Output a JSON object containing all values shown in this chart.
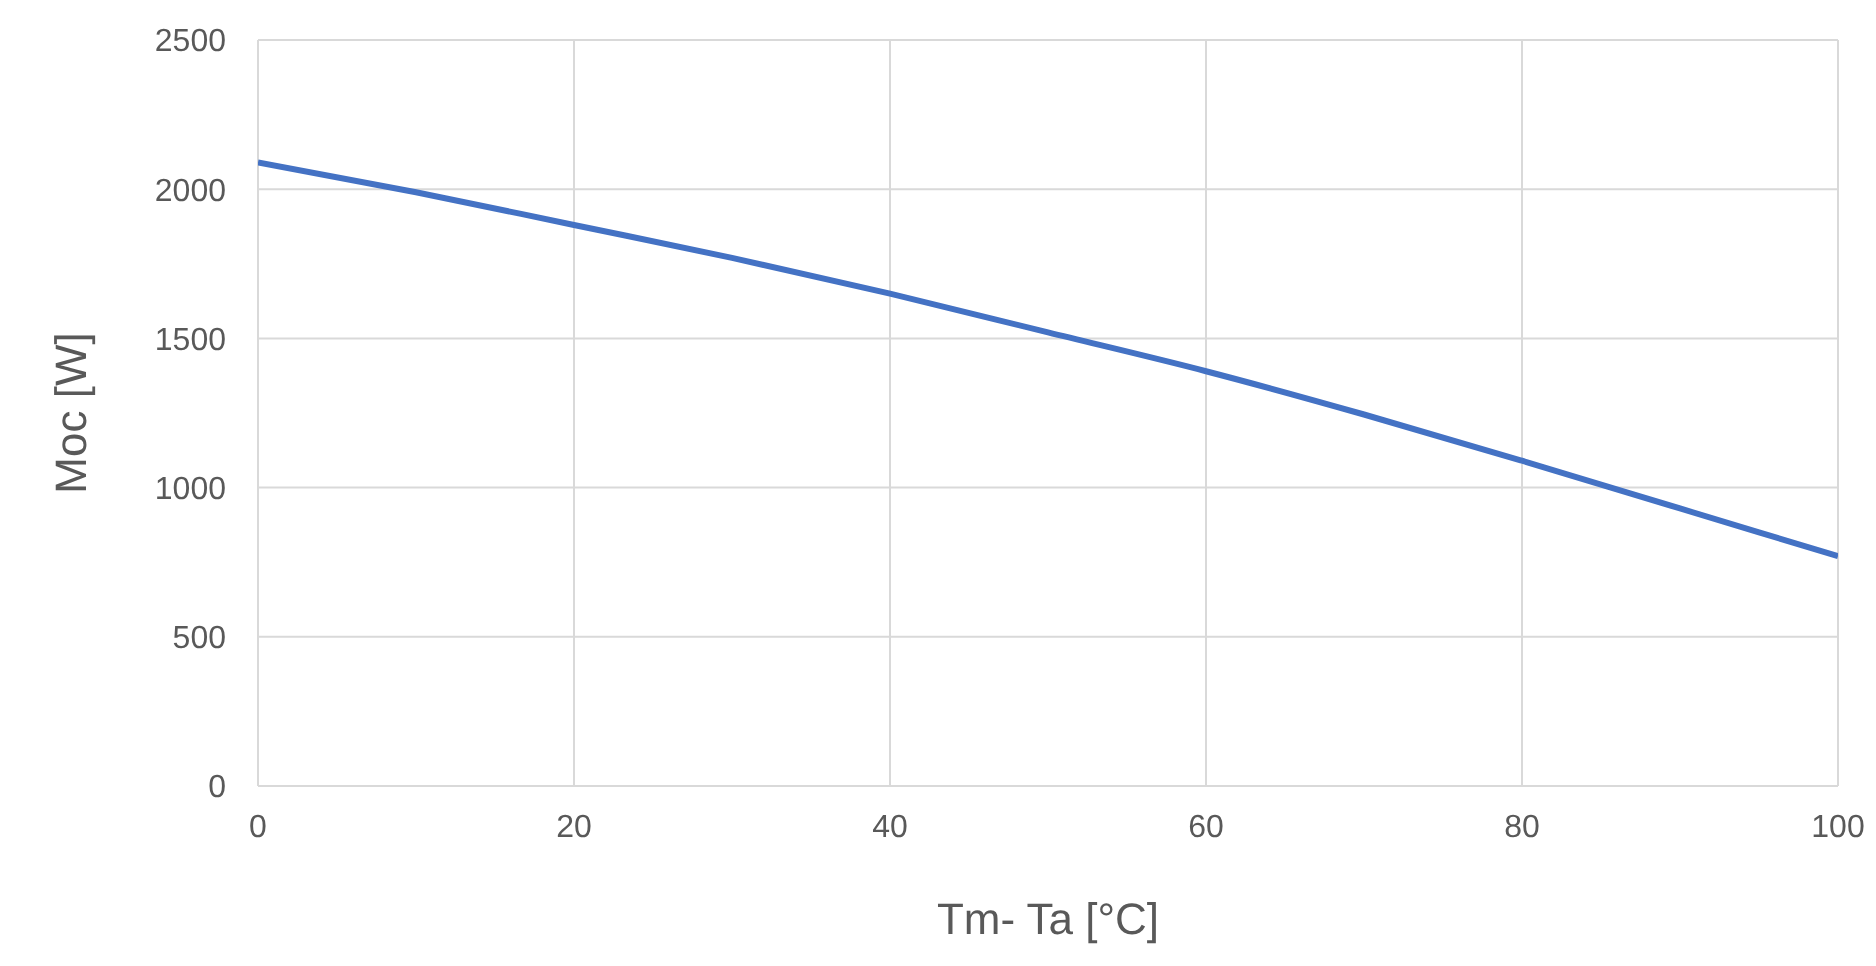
{
  "chart_data": {
    "type": "line",
    "xlabel": "Tm- Ta [°C]",
    "ylabel": "Moc [W]",
    "x": [
      0,
      10,
      20,
      30,
      40,
      50,
      60,
      70,
      80,
      90,
      100
    ],
    "series": [
      {
        "color": "#4472c4",
        "values": [
          2090,
          1990,
          1880,
          1770,
          1650,
          1520,
          1390,
          1245,
          1090,
          930,
          770
        ]
      }
    ],
    "xlim": [
      0,
      100
    ],
    "xticks": [
      0,
      20,
      40,
      60,
      80,
      100
    ],
    "ylim": [
      0,
      2500
    ],
    "yticks": [
      0,
      500,
      1000,
      1500,
      2000,
      2500
    ],
    "grid": true,
    "legend": false,
    "marker": "none",
    "line_style": "solid"
  }
}
